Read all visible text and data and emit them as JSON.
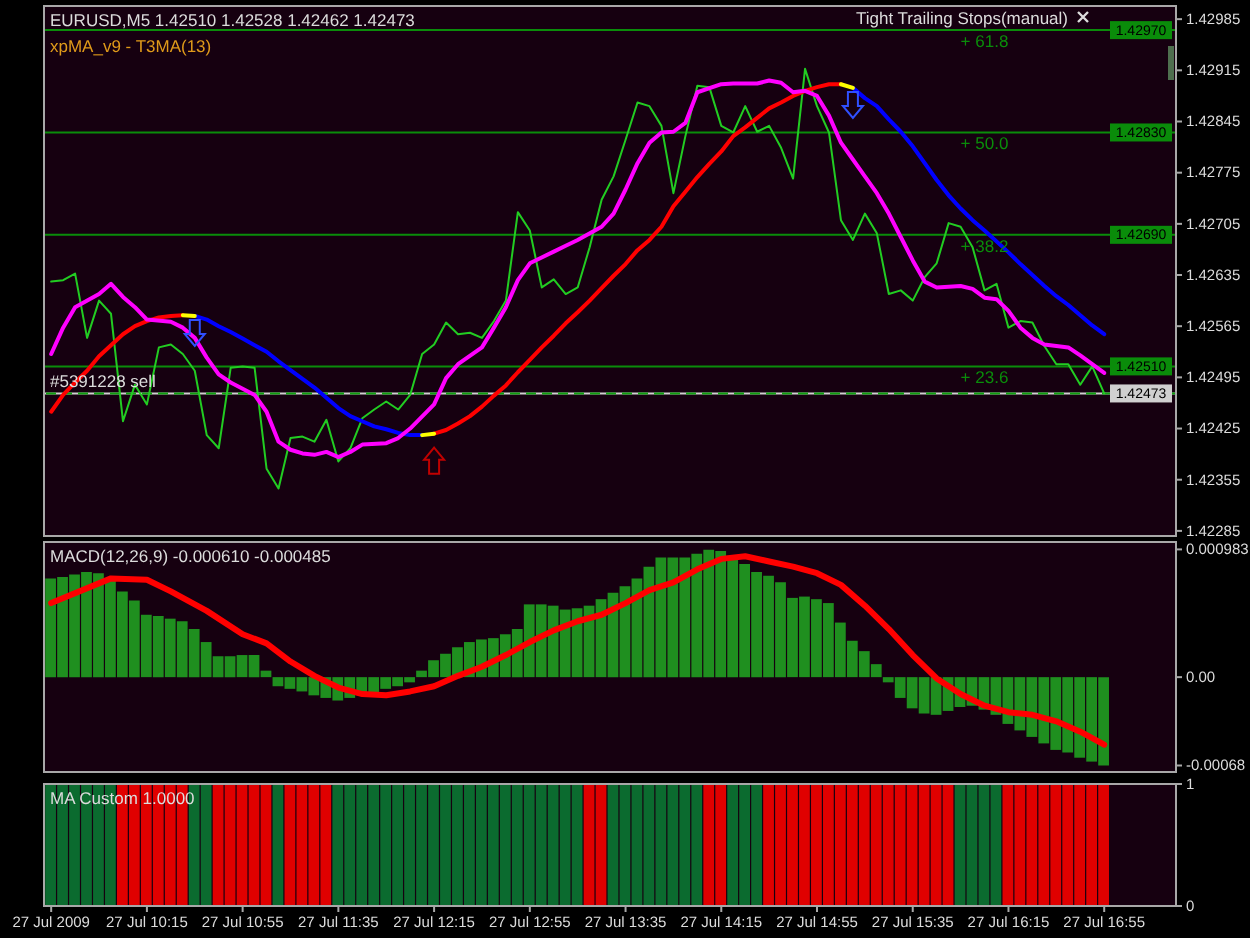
{
  "chart_data": [
    {
      "type": "line",
      "title": "EURUSD,M5 1.42510 1.42528 1.42462 1.42473",
      "subtitle": "xpMA_v9 - T3MA(13)",
      "annotations": [
        "Tight Trailing Stops(manual)",
        {
          "text": "+ 61.8",
          "x": "2009-07-27T15:55",
          "y": 1.4297
        },
        {
          "text": "+ 50.0",
          "x": "2009-07-27T15:55",
          "y": 1.4283
        },
        {
          "text": "+ 38.2",
          "x": "2009-07-27T15:55",
          "y": 1.4269
        },
        {
          "text": "+ 23.6",
          "x": "2009-07-27T15:55",
          "y": 1.4251
        }
      ],
      "x": [
        "2009-07-27T09:35",
        "2009-07-27T09:40",
        "2009-07-27T09:45",
        "2009-07-27T09:50",
        "2009-07-27T09:55",
        "2009-07-27T10:00",
        "2009-07-27T10:05",
        "2009-07-27T10:10",
        "2009-07-27T10:15",
        "2009-07-27T10:20",
        "2009-07-27T10:25",
        "2009-07-27T10:30",
        "2009-07-27T10:35",
        "2009-07-27T10:40",
        "2009-07-27T10:45",
        "2009-07-27T10:50",
        "2009-07-27T10:55",
        "2009-07-27T11:00",
        "2009-07-27T11:05",
        "2009-07-27T11:10",
        "2009-07-27T11:15",
        "2009-07-27T11:20",
        "2009-07-27T11:25",
        "2009-07-27T11:30",
        "2009-07-27T11:35",
        "2009-07-27T11:40",
        "2009-07-27T11:45",
        "2009-07-27T11:50",
        "2009-07-27T11:55",
        "2009-07-27T12:00",
        "2009-07-27T12:05",
        "2009-07-27T12:10",
        "2009-07-27T12:15",
        "2009-07-27T12:20",
        "2009-07-27T12:25",
        "2009-07-27T12:30",
        "2009-07-27T12:35",
        "2009-07-27T12:40",
        "2009-07-27T12:45",
        "2009-07-27T12:50",
        "2009-07-27T12:55",
        "2009-07-27T13:00",
        "2009-07-27T13:05",
        "2009-07-27T13:10",
        "2009-07-27T13:15",
        "2009-07-27T13:20",
        "2009-07-27T13:25",
        "2009-07-27T13:30",
        "2009-07-27T13:35",
        "2009-07-27T13:40",
        "2009-07-27T13:45",
        "2009-07-27T13:50",
        "2009-07-27T13:55",
        "2009-07-27T14:00",
        "2009-07-27T14:05",
        "2009-07-27T14:10",
        "2009-07-27T14:15",
        "2009-07-27T14:20",
        "2009-07-27T14:25",
        "2009-07-27T14:30",
        "2009-07-27T14:35",
        "2009-07-27T14:40",
        "2009-07-27T14:45",
        "2009-07-27T14:50",
        "2009-07-27T14:55",
        "2009-07-27T15:00",
        "2009-07-27T15:05",
        "2009-07-27T15:10",
        "2009-07-27T15:15",
        "2009-07-27T15:20",
        "2009-07-27T15:25",
        "2009-07-27T15:30",
        "2009-07-27T15:35",
        "2009-07-27T15:40",
        "2009-07-27T15:45",
        "2009-07-27T15:50",
        "2009-07-27T15:55",
        "2009-07-27T16:00",
        "2009-07-27T16:05",
        "2009-07-27T16:10",
        "2009-07-27T16:15",
        "2009-07-27T16:20",
        "2009-07-27T16:25",
        "2009-07-27T16:30",
        "2009-07-27T16:35",
        "2009-07-27T16:40",
        "2009-07-27T16:45",
        "2009-07-27T16:50",
        "2009-07-27T16:55"
      ],
      "series": [
        {
          "color": "#22cc22",
          "values": [
            1.42626,
            1.42628,
            1.42637,
            1.42549,
            1.426,
            1.42582,
            1.42435,
            1.42485,
            1.42458,
            1.42536,
            1.4254,
            1.42527,
            1.42504,
            1.42416,
            1.42398,
            1.42508,
            1.4251,
            1.42508,
            1.4237,
            1.42343,
            1.42412,
            1.42414,
            1.42407,
            1.42437,
            1.4238,
            1.42398,
            1.42439,
            1.42451,
            1.42462,
            1.42451,
            1.42471,
            1.42527,
            1.4254,
            1.4257,
            1.42554,
            1.42556,
            1.42549,
            1.42572,
            1.426,
            1.42721,
            1.42696,
            1.42618,
            1.42629,
            1.42609,
            1.42618,
            1.42673,
            1.42738,
            1.4277,
            1.4282,
            1.42871,
            1.42866,
            1.42839,
            1.42747,
            1.42825,
            1.42894,
            1.42892,
            1.42839,
            1.4283,
            1.42866,
            1.42831,
            1.42839,
            1.42809,
            1.42767,
            1.42917,
            1.42866,
            1.4283,
            1.4271,
            1.42683,
            1.42719,
            1.42692,
            1.42609,
            1.42614,
            1.426,
            1.42632,
            1.42651,
            1.42706,
            1.42701,
            1.42673,
            1.42614,
            1.42623,
            1.42563,
            1.42572,
            1.4257,
            1.42538,
            1.42513,
            1.42513,
            1.42485,
            1.4251,
            1.42473
          ]
        },
        {
          "color": "#ff0000",
          "values": [
            1.42448,
            1.42471,
            1.42488,
            1.42504,
            1.42524,
            1.42539,
            1.42554,
            1.42565,
            1.42572,
            1.42577,
            1.42579,
            1.4258,
            null,
            null,
            null,
            null,
            null,
            null,
            null,
            null,
            null,
            null,
            null,
            null,
            null,
            null,
            null,
            null,
            null,
            null,
            null,
            null,
            1.42418,
            1.42423,
            1.42432,
            1.42442,
            1.42455,
            1.4247,
            1.42484,
            1.42502,
            1.42519,
            1.42536,
            1.42552,
            1.42569,
            1.42584,
            1.426,
            1.42617,
            1.42634,
            1.4265,
            1.42669,
            1.42683,
            1.42701,
            1.42729,
            1.42749,
            1.42769,
            1.42787,
            1.42804,
            1.42825,
            1.42837,
            1.4285,
            1.42863,
            1.42871,
            1.4288,
            1.42887,
            1.42892,
            1.42896,
            1.42896,
            null,
            null,
            null,
            null,
            null,
            null,
            null,
            null,
            null,
            null,
            null,
            null,
            null,
            null,
            null,
            null,
            null,
            null,
            null,
            null,
            null,
            null
          ]
        },
        {
          "color": "#0000ff",
          "values": [
            null,
            null,
            null,
            null,
            null,
            null,
            null,
            null,
            null,
            null,
            null,
            null,
            1.42579,
            1.42574,
            1.42565,
            1.42557,
            1.42548,
            1.42539,
            1.4253,
            1.42517,
            1.42505,
            1.42493,
            1.42481,
            1.42467,
            1.42453,
            1.42442,
            1.42435,
            1.42428,
            1.42424,
            1.42419,
            1.42416,
            1.42416,
            null,
            null,
            null,
            null,
            null,
            null,
            null,
            null,
            null,
            null,
            null,
            null,
            null,
            null,
            null,
            null,
            null,
            null,
            null,
            null,
            null,
            null,
            null,
            null,
            null,
            null,
            null,
            null,
            null,
            null,
            null,
            null,
            null,
            null,
            null,
            1.42891,
            1.42877,
            1.42866,
            1.42848,
            1.42831,
            1.42811,
            1.42788,
            1.42765,
            1.42744,
            1.42726,
            1.4271,
            1.42696,
            1.42681,
            1.42666,
            1.4265,
            1.42635,
            1.4262,
            1.42606,
            1.42594,
            1.4258,
            1.42566,
            1.42554
          ]
        },
        {
          "color": "#ffff00",
          "values": [
            null,
            null,
            null,
            null,
            null,
            null,
            null,
            null,
            null,
            null,
            null,
            1.4258,
            1.42579,
            null,
            null,
            null,
            null,
            null,
            null,
            null,
            null,
            null,
            null,
            null,
            null,
            null,
            null,
            null,
            null,
            null,
            null,
            1.42416,
            1.42418,
            null,
            null,
            null,
            null,
            null,
            null,
            null,
            null,
            null,
            null,
            null,
            null,
            null,
            null,
            null,
            null,
            null,
            null,
            null,
            null,
            null,
            null,
            null,
            null,
            null,
            null,
            null,
            null,
            null,
            null,
            null,
            null,
            null,
            1.42896,
            1.42891,
            null,
            null,
            null,
            null,
            null,
            null,
            null,
            null,
            null,
            null,
            null,
            null,
            null,
            null,
            null,
            null,
            null,
            null,
            null,
            null,
            null
          ]
        },
        {
          "color": "#ff00ff",
          "x": [
            "2009-07-27T09:35",
            "2009-07-27T09:40",
            "2009-07-27T09:45",
            "2009-07-27T09:55",
            "2009-07-27T10:00",
            "2009-07-27T10:05",
            "2009-07-27T10:10",
            "2009-07-27T10:15",
            "2009-07-27T10:25",
            "2009-07-27T10:30",
            "2009-07-27T10:35",
            "2009-07-27T10:40",
            "2009-07-27T10:45",
            "2009-07-27T10:50",
            "2009-07-27T11:00",
            "2009-07-27T11:05",
            "2009-07-27T11:10",
            "2009-07-27T11:15",
            "2009-07-27T11:20",
            "2009-07-27T11:25",
            "2009-07-27T11:30",
            "2009-07-27T11:35",
            "2009-07-27T11:40",
            "2009-07-27T11:45",
            "2009-07-27T11:55",
            "2009-07-27T12:00",
            "2009-07-27T12:05",
            "2009-07-27T12:15",
            "2009-07-27T12:20",
            "2009-07-27T12:25",
            "2009-07-27T12:35",
            "2009-07-27T12:40",
            "2009-07-27T12:45",
            "2009-07-27T12:50",
            "2009-07-27T12:55",
            "2009-07-27T13:05",
            "2009-07-27T13:10",
            "2009-07-27T13:15",
            "2009-07-27T13:25",
            "2009-07-27T13:30",
            "2009-07-27T13:35",
            "2009-07-27T13:40",
            "2009-07-27T13:45",
            "2009-07-27T13:50",
            "2009-07-27T13:55",
            "2009-07-27T14:00",
            "2009-07-27T14:05",
            "2009-07-27T14:15",
            "2009-07-27T14:20",
            "2009-07-27T14:30",
            "2009-07-27T14:35",
            "2009-07-27T14:40",
            "2009-07-27T14:45",
            "2009-07-27T14:50",
            "2009-07-27T14:55",
            "2009-07-27T15:00",
            "2009-07-27T15:05",
            "2009-07-27T15:10",
            "2009-07-27T15:15",
            "2009-07-27T15:20",
            "2009-07-27T15:25",
            "2009-07-27T15:30",
            "2009-07-27T15:35",
            "2009-07-27T15:40",
            "2009-07-27T15:45",
            "2009-07-27T15:55",
            "2009-07-27T16:00",
            "2009-07-27T16:05",
            "2009-07-27T16:10",
            "2009-07-27T16:15",
            "2009-07-27T16:20",
            "2009-07-27T16:25",
            "2009-07-27T16:30",
            "2009-07-27T16:40",
            "2009-07-27T16:45",
            "2009-07-27T16:50",
            "2009-07-27T16:55"
          ],
          "values": [
            1.42527,
            1.42563,
            1.42591,
            1.42609,
            1.42623,
            1.42605,
            1.42591,
            1.42574,
            1.42571,
            1.42563,
            1.42549,
            1.42522,
            1.42499,
            1.42488,
            1.42471,
            1.42448,
            1.42407,
            1.42396,
            1.42391,
            1.42389,
            1.42393,
            1.42386,
            1.42393,
            1.42403,
            1.42405,
            1.42412,
            1.42425,
            1.42458,
            1.42494,
            1.42513,
            1.42536,
            1.42563,
            1.42591,
            1.42628,
            1.42651,
            1.42667,
            1.42675,
            1.42683,
            1.42701,
            1.42719,
            1.42752,
            1.42788,
            1.42816,
            1.4283,
            1.42831,
            1.42843,
            1.42885,
            1.42896,
            1.42897,
            1.42897,
            1.42901,
            1.42898,
            1.42885,
            1.42887,
            1.4288,
            1.42853,
            1.42816,
            1.42793,
            1.4277,
            1.42747,
            1.42719,
            1.42687,
            1.42655,
            1.42626,
            1.42618,
            1.4262,
            1.42616,
            1.42604,
            1.42602,
            1.42586,
            1.42563,
            1.42549,
            1.4254,
            1.42536,
            1.42525,
            1.42513,
            1.42501
          ]
        }
      ],
      "xlim": [
        "2009-07-27T09:32",
        "2009-07-27T17:25"
      ],
      "ylim": [
        1.42278,
        1.43003
      ],
      "yticks": [
        1.42285,
        1.42355,
        1.42425,
        1.42495,
        1.42565,
        1.42635,
        1.42705,
        1.42775,
        1.42845,
        1.42915,
        1.42985
      ],
      "ref_lines": [
        {
          "axis": "y",
          "value": 1.4297,
          "label": "1.42970",
          "color": "#0a8c0a"
        },
        {
          "axis": "y",
          "value": 1.4283,
          "label": "1.42830",
          "color": "#0a8c0a"
        },
        {
          "axis": "y",
          "value": 1.4269,
          "label": "1.42690",
          "color": "#0a8c0a"
        },
        {
          "axis": "y",
          "value": 1.4251,
          "label": "1.42510",
          "color": "#0a8c0a"
        },
        {
          "axis": "y",
          "value": 1.42473,
          "label": "1.42473",
          "color": "#d0d0d0"
        },
        {
          "axis": "y",
          "value": 1.42473,
          "label": "#5391228 sell",
          "color": "#10a010",
          "line_style": "dashed"
        }
      ],
      "tick_labels": "y"
    },
    {
      "type": "bar",
      "title": "MACD(12,26,9) -0.000610 -0.000485",
      "x": [
        "2009-07-27T09:35",
        "2009-07-27T09:40",
        "2009-07-27T09:45",
        "2009-07-27T09:50",
        "2009-07-27T09:55",
        "2009-07-27T10:00",
        "2009-07-27T10:05",
        "2009-07-27T10:10",
        "2009-07-27T10:15",
        "2009-07-27T10:20",
        "2009-07-27T10:25",
        "2009-07-27T10:30",
        "2009-07-27T10:35",
        "2009-07-27T10:40",
        "2009-07-27T10:45",
        "2009-07-27T10:50",
        "2009-07-27T10:55",
        "2009-07-27T11:00",
        "2009-07-27T11:05",
        "2009-07-27T11:10",
        "2009-07-27T11:15",
        "2009-07-27T11:20",
        "2009-07-27T11:25",
        "2009-07-27T11:30",
        "2009-07-27T11:35",
        "2009-07-27T11:40",
        "2009-07-27T11:45",
        "2009-07-27T11:50",
        "2009-07-27T11:55",
        "2009-07-27T12:00",
        "2009-07-27T12:05",
        "2009-07-27T12:10",
        "2009-07-27T12:15",
        "2009-07-27T12:20",
        "2009-07-27T12:25",
        "2009-07-27T12:30",
        "2009-07-27T12:35",
        "2009-07-27T12:40",
        "2009-07-27T12:45",
        "2009-07-27T12:50",
        "2009-07-27T12:55",
        "2009-07-27T13:00",
        "2009-07-27T13:05",
        "2009-07-27T13:10",
        "2009-07-27T13:15",
        "2009-07-27T13:20",
        "2009-07-27T13:25",
        "2009-07-27T13:30",
        "2009-07-27T13:35",
        "2009-07-27T13:40",
        "2009-07-27T13:45",
        "2009-07-27T13:50",
        "2009-07-27T13:55",
        "2009-07-27T14:00",
        "2009-07-27T14:05",
        "2009-07-27T14:10",
        "2009-07-27T14:15",
        "2009-07-27T14:20",
        "2009-07-27T14:25",
        "2009-07-27T14:30",
        "2009-07-27T14:35",
        "2009-07-27T14:40",
        "2009-07-27T14:45",
        "2009-07-27T14:50",
        "2009-07-27T14:55",
        "2009-07-27T15:00",
        "2009-07-27T15:05",
        "2009-07-27T15:10",
        "2009-07-27T15:15",
        "2009-07-27T15:20",
        "2009-07-27T15:25",
        "2009-07-27T15:30",
        "2009-07-27T15:35",
        "2009-07-27T15:40",
        "2009-07-27T15:45",
        "2009-07-27T15:50",
        "2009-07-27T15:55",
        "2009-07-27T16:00",
        "2009-07-27T16:05",
        "2009-07-27T16:10",
        "2009-07-27T16:15",
        "2009-07-27T16:20",
        "2009-07-27T16:25",
        "2009-07-27T16:30",
        "2009-07-27T16:35",
        "2009-07-27T16:40",
        "2009-07-27T16:45",
        "2009-07-27T16:50",
        "2009-07-27T16:55"
      ],
      "series": [
        {
          "color": "#1f8f1f",
          "values": [
            0.00076,
            0.00077,
            0.00079,
            0.00081,
            0.0008,
            0.00076,
            0.00066,
            0.00059,
            0.00048,
            0.00047,
            0.00045,
            0.00043,
            0.00037,
            0.00027,
            0.00016,
            0.00016,
            0.00017,
            0.00017,
            5e-05,
            -7e-05,
            -9e-05,
            -0.00011,
            -0.00014,
            -0.00016,
            -0.00018,
            -0.00016,
            -0.00014,
            -0.00012,
            -9e-05,
            -7e-05,
            -4e-05,
            5e-05,
            0.00013,
            0.00018,
            0.00023,
            0.00027,
            0.00029,
            0.0003,
            0.00033,
            0.00037,
            0.00056,
            0.00056,
            0.00055,
            0.00052,
            0.00053,
            0.00055,
            0.0006,
            0.00065,
            0.0007,
            0.00076,
            0.00085,
            0.00092,
            0.00092,
            0.00092,
            0.00095,
            0.00098,
            0.00097,
            0.00093,
            0.00087,
            0.00081,
            0.00078,
            0.00073,
            0.00061,
            0.00062,
            0.0006,
            0.00057,
            0.00042,
            0.00028,
            0.0002,
            0.0001,
            -4e-05,
            -0.00016,
            -0.00024,
            -0.00028,
            -0.00029,
            -0.00026,
            -0.00023,
            -0.00022,
            -0.00025,
            -0.00029,
            -0.00036,
            -0.00041,
            -0.00046,
            -0.00051,
            -0.00056,
            -0.00058,
            -0.00062,
            -0.00065,
            -0.00068
          ]
        },
        {
          "type": "line",
          "color": "#ff0000",
          "x": [
            "2009-07-27T09:35",
            "2009-07-27T10:00",
            "2009-07-27T10:15",
            "2009-07-27T10:25",
            "2009-07-27T10:40",
            "2009-07-27T10:55",
            "2009-07-27T11:05",
            "2009-07-27T11:15",
            "2009-07-27T11:25",
            "2009-07-27T11:35",
            "2009-07-27T11:45",
            "2009-07-27T11:55",
            "2009-07-27T12:05",
            "2009-07-27T12:15",
            "2009-07-27T12:25",
            "2009-07-27T12:35",
            "2009-07-27T12:45",
            "2009-07-27T12:55",
            "2009-07-27T13:05",
            "2009-07-27T13:15",
            "2009-07-27T13:25",
            "2009-07-27T13:35",
            "2009-07-27T13:45",
            "2009-07-27T13:55",
            "2009-07-27T14:05",
            "2009-07-27T14:15",
            "2009-07-27T14:25",
            "2009-07-27T14:35",
            "2009-07-27T14:45",
            "2009-07-27T14:55",
            "2009-07-27T15:05",
            "2009-07-27T15:15",
            "2009-07-27T15:25",
            "2009-07-27T15:35",
            "2009-07-27T15:45",
            "2009-07-27T15:55",
            "2009-07-27T16:05",
            "2009-07-27T16:15",
            "2009-07-27T16:25",
            "2009-07-27T16:35",
            "2009-07-27T16:45",
            "2009-07-27T16:55"
          ],
          "values": [
            0.00057,
            0.00076,
            0.00075,
            0.00066,
            0.00051,
            0.00033,
            0.00026,
            0.00012,
            1e-05,
            -8e-05,
            -0.00013,
            -0.00014,
            -0.00011,
            -7e-05,
            1e-05,
            8e-05,
            0.00017,
            0.00027,
            0.00036,
            0.00043,
            0.00048,
            0.00057,
            0.00067,
            0.00073,
            0.00083,
            0.00091,
            0.00093,
            0.00089,
            0.00085,
            0.0008,
            0.00071,
            0.00055,
            0.00037,
            0.00017,
            -1e-05,
            -0.00013,
            -0.00022,
            -0.00027,
            -0.00029,
            -0.00034,
            -0.00042,
            -0.00052
          ]
        }
      ],
      "xlim": [
        "2009-07-27T09:32",
        "2009-07-27T17:25"
      ],
      "ylim": [
        -0.00073,
        0.00104
      ],
      "yticks": [
        -0.00068,
        {
          "value": 0,
          "label": "0.00"
        },
        0.000983
      ],
      "tick_labels": "y"
    },
    {
      "type": "bar",
      "title": "MA Custom 1.0000",
      "x": [
        "2009-07-27T09:35",
        "2009-07-27T09:40",
        "2009-07-27T09:45",
        "2009-07-27T09:50",
        "2009-07-27T09:55",
        "2009-07-27T10:00",
        "2009-07-27T10:05",
        "2009-07-27T10:10",
        "2009-07-27T10:15",
        "2009-07-27T10:20",
        "2009-07-27T10:25",
        "2009-07-27T10:30",
        "2009-07-27T10:35",
        "2009-07-27T10:40",
        "2009-07-27T10:45",
        "2009-07-27T10:50",
        "2009-07-27T10:55",
        "2009-07-27T11:00",
        "2009-07-27T11:05",
        "2009-07-27T11:10",
        "2009-07-27T11:15",
        "2009-07-27T11:20",
        "2009-07-27T11:25",
        "2009-07-27T11:30",
        "2009-07-27T11:35",
        "2009-07-27T11:40",
        "2009-07-27T11:45",
        "2009-07-27T11:50",
        "2009-07-27T11:55",
        "2009-07-27T12:00",
        "2009-07-27T12:05",
        "2009-07-27T12:10",
        "2009-07-27T12:15",
        "2009-07-27T12:20",
        "2009-07-27T12:25",
        "2009-07-27T12:30",
        "2009-07-27T12:35",
        "2009-07-27T12:40",
        "2009-07-27T12:45",
        "2009-07-27T12:50",
        "2009-07-27T12:55",
        "2009-07-27T13:00",
        "2009-07-27T13:05",
        "2009-07-27T13:10",
        "2009-07-27T13:15",
        "2009-07-27T13:20",
        "2009-07-27T13:25",
        "2009-07-27T13:30",
        "2009-07-27T13:35",
        "2009-07-27T13:40",
        "2009-07-27T13:45",
        "2009-07-27T13:50",
        "2009-07-27T13:55",
        "2009-07-27T14:00",
        "2009-07-27T14:05",
        "2009-07-27T14:10",
        "2009-07-27T14:15",
        "2009-07-27T14:20",
        "2009-07-27T14:25",
        "2009-07-27T14:30",
        "2009-07-27T14:35",
        "2009-07-27T14:40",
        "2009-07-27T14:45",
        "2009-07-27T14:50",
        "2009-07-27T14:55",
        "2009-07-27T15:00",
        "2009-07-27T15:05",
        "2009-07-27T15:10",
        "2009-07-27T15:15",
        "2009-07-27T15:20",
        "2009-07-27T15:25",
        "2009-07-27T15:30",
        "2009-07-27T15:35",
        "2009-07-27T15:40",
        "2009-07-27T15:45",
        "2009-07-27T15:50",
        "2009-07-27T15:55",
        "2009-07-27T16:00",
        "2009-07-27T16:05",
        "2009-07-27T16:10",
        "2009-07-27T16:15",
        "2009-07-27T16:20",
        "2009-07-27T16:25",
        "2009-07-27T16:30",
        "2009-07-27T16:35",
        "2009-07-27T16:40",
        "2009-07-27T16:45",
        "2009-07-27T16:50",
        "2009-07-27T16:55"
      ],
      "values": [
        1,
        1,
        1,
        1,
        1,
        1,
        1,
        1,
        1,
        1,
        1,
        1,
        1,
        1,
        1,
        1,
        1,
        1,
        1,
        1,
        1,
        1,
        1,
        1,
        1,
        1,
        1,
        1,
        1,
        1,
        1,
        1,
        1,
        1,
        1,
        1,
        1,
        1,
        1,
        1,
        1,
        1,
        1,
        1,
        1,
        1,
        1,
        1,
        1,
        1,
        1,
        1,
        1,
        1,
        1,
        1,
        1,
        1,
        1,
        1,
        1,
        1,
        1,
        1,
        1,
        1,
        1,
        1,
        1,
        1,
        1,
        1,
        1,
        1,
        1,
        1,
        1,
        1,
        1,
        1,
        1,
        1,
        1,
        1,
        1,
        1,
        1,
        1,
        1
      ],
      "colors": [
        "#0b6b2f",
        "#0b6b2f",
        "#0b6b2f",
        "#0b6b2f",
        "#0b6b2f",
        "#0b6b2f",
        "#e00000",
        "#e00000",
        "#e00000",
        "#e00000",
        "#e00000",
        "#e00000",
        "#0b6b2f",
        "#0b6b2f",
        "#e00000",
        "#e00000",
        "#e00000",
        "#e00000",
        "#e00000",
        "#0b6b2f",
        "#e00000",
        "#e00000",
        "#e00000",
        "#e00000",
        "#0b6b2f",
        "#0b6b2f",
        "#0b6b2f",
        "#0b6b2f",
        "#0b6b2f",
        "#0b6b2f",
        "#0b6b2f",
        "#0b6b2f",
        "#0b6b2f",
        "#0b6b2f",
        "#0b6b2f",
        "#0b6b2f",
        "#0b6b2f",
        "#0b6b2f",
        "#0b6b2f",
        "#0b6b2f",
        "#0b6b2f",
        "#0b6b2f",
        "#0b6b2f",
        "#0b6b2f",
        "#0b6b2f",
        "#e00000",
        "#e00000",
        "#0b6b2f",
        "#0b6b2f",
        "#0b6b2f",
        "#0b6b2f",
        "#0b6b2f",
        "#0b6b2f",
        "#0b6b2f",
        "#0b6b2f",
        "#e00000",
        "#e00000",
        "#0b6b2f",
        "#0b6b2f",
        "#0b6b2f",
        "#e00000",
        "#e00000",
        "#e00000",
        "#e00000",
        "#e00000",
        "#e00000",
        "#e00000",
        "#e00000",
        "#e00000",
        "#e00000",
        "#e00000",
        "#e00000",
        "#e00000",
        "#e00000",
        "#e00000",
        "#e00000",
        "#0b6b2f",
        "#0b6b2f",
        "#0b6b2f",
        "#0b6b2f",
        "#e00000",
        "#e00000",
        "#e00000",
        "#e00000",
        "#e00000",
        "#e00000",
        "#e00000",
        "#e00000",
        "#e00000"
      ],
      "xlim": [
        "2009-07-27T09:32",
        "2009-07-27T17:25"
      ],
      "xticks": [
        {
          "value": "2009-07-27T09:35",
          "label": "27 Jul 2009"
        },
        {
          "value": "2009-07-27T10:15",
          "label": "27 Jul 10:15"
        },
        {
          "value": "2009-07-27T10:55",
          "label": "27 Jul 10:55"
        },
        {
          "value": "2009-07-27T11:35",
          "label": "27 Jul 11:35"
        },
        {
          "value": "2009-07-27T12:15",
          "label": "27 Jul 12:15"
        },
        {
          "value": "2009-07-27T12:55",
          "label": "27 Jul 12:55"
        },
        {
          "value": "2009-07-27T13:35",
          "label": "27 Jul 13:35"
        },
        {
          "value": "2009-07-27T14:15",
          "label": "27 Jul 14:15"
        },
        {
          "value": "2009-07-27T14:55",
          "label": "27 Jul 14:55"
        },
        {
          "value": "2009-07-27T15:35",
          "label": "27 Jul 15:35"
        },
        {
          "value": "2009-07-27T16:15",
          "label": "27 Jul 16:15"
        },
        {
          "value": "2009-07-27T16:55",
          "label": "27 Jul 16:55"
        }
      ],
      "ylim": [
        0,
        1
      ],
      "yticks": [
        0,
        1
      ]
    }
  ]
}
